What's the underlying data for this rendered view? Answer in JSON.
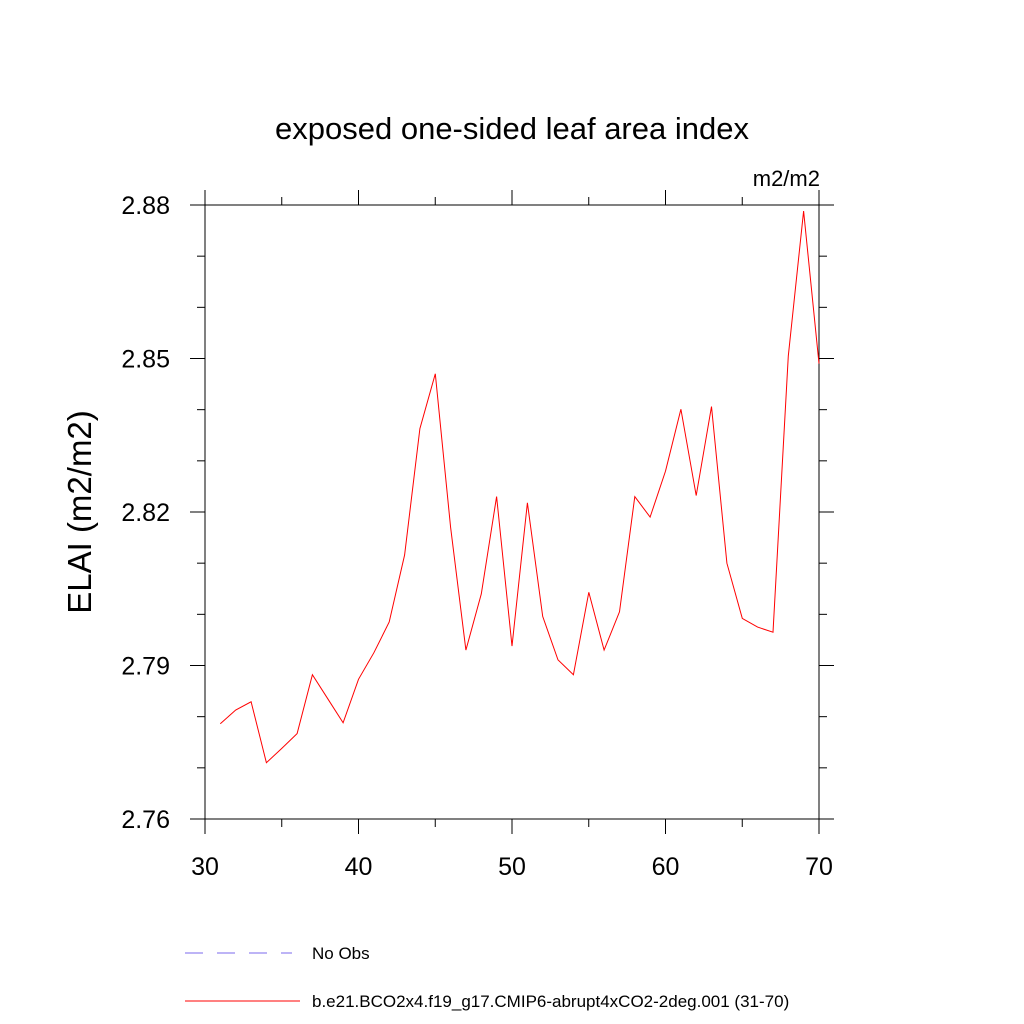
{
  "chart_data": {
    "type": "line",
    "title": "exposed one-sided leaf area index",
    "units": "m2/m2",
    "ylabel": "ELAI  (m2/m2)",
    "xlabel": "",
    "xlim": [
      30,
      70
    ],
    "ylim": [
      2.76,
      2.88
    ],
    "xticks": [
      30,
      40,
      50,
      60,
      70
    ],
    "xtick_labels": [
      "30",
      "40",
      "50",
      "60",
      "70"
    ],
    "yticks": [
      2.76,
      2.79,
      2.82,
      2.85,
      2.88
    ],
    "ytick_labels": [
      "2.76",
      "2.79",
      "2.82",
      "2.85",
      "2.88"
    ],
    "grid": false,
    "legend_placement": "bottom",
    "series": [
      {
        "name": "No Obs",
        "color": "#7b68ee",
        "style": "dashed",
        "x": [],
        "y": []
      },
      {
        "name": "b.e21.BCO2x4.f19_g17.CMIP6-abrupt4xCO2-2deg.001 (31-70)",
        "color": "#ff0000",
        "style": "solid",
        "x": [
          31,
          32,
          33,
          34,
          35,
          36,
          37,
          38,
          39,
          40,
          41,
          42,
          43,
          44,
          45,
          46,
          47,
          48,
          49,
          50,
          51,
          52,
          53,
          54,
          55,
          56,
          57,
          58,
          59,
          60,
          61,
          62,
          63,
          64,
          65,
          66,
          67,
          68,
          69,
          70
        ],
        "y": [
          2.7786,
          2.7813,
          2.7829,
          2.771,
          2.7738,
          2.7767,
          2.7882,
          2.7835,
          2.7788,
          2.7873,
          2.7925,
          2.7985,
          2.8116,
          2.8363,
          2.847,
          2.817,
          2.793,
          2.804,
          2.823,
          2.7938,
          2.8218,
          2.7996,
          2.7911,
          2.7882,
          2.8043,
          2.793,
          2.8005,
          2.823,
          2.819,
          2.828,
          2.8401,
          2.8232,
          2.8406,
          2.81,
          2.7992,
          2.7975,
          2.7965,
          2.8505,
          2.8788,
          2.849
        ]
      }
    ]
  }
}
